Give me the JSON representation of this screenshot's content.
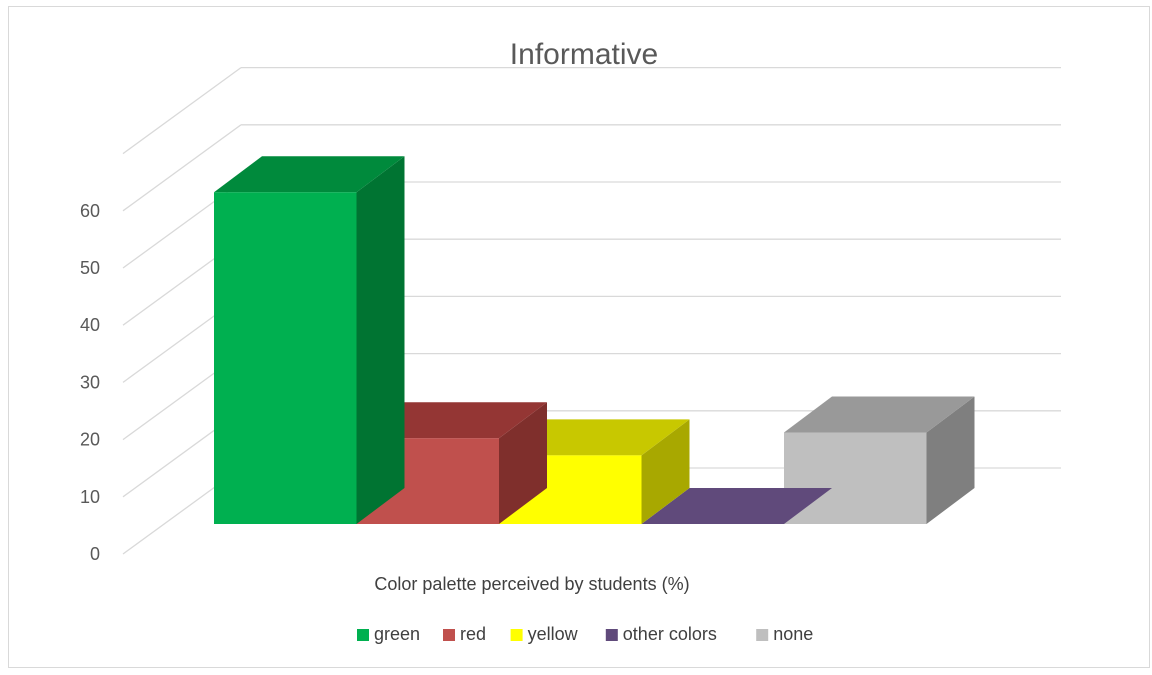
{
  "chart_data": {
    "type": "bar",
    "title": "Informative",
    "xlabel": "Color palette perceived by students (%)",
    "ylabel": "",
    "categories": [
      "green",
      "red",
      "yellow",
      "other colors",
      "none"
    ],
    "values": [
      58,
      15,
      12,
      0,
      16
    ],
    "ylim": [
      0,
      60
    ],
    "yticks": [
      0,
      10,
      20,
      30,
      40,
      50,
      60
    ],
    "grid": true,
    "legend_position": "bottom",
    "style": "3d-column",
    "colors": {
      "green": {
        "front": "#00b050",
        "side": "#007432",
        "top": "#008a3c"
      },
      "red": {
        "front": "#c0504d",
        "side": "#7f2f2c",
        "top": "#943634"
      },
      "yellow": {
        "front": "#ffff00",
        "side": "#a8a800",
        "top": "#c8c800"
      },
      "other colors": {
        "front": "#604a7b",
        "side": "#403152",
        "top": "#604a7b"
      },
      "none": {
        "front": "#bfbfbf",
        "side": "#7f7f7f",
        "top": "#999999"
      }
    },
    "gridline_color": "#d9d9d9"
  }
}
